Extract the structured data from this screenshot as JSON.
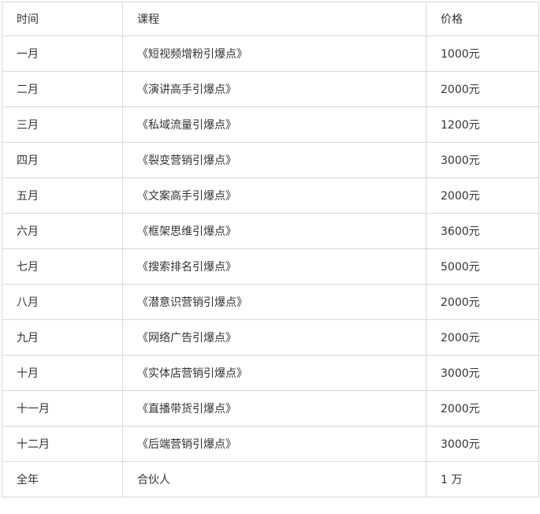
{
  "colors": {
    "background": "#ffffff",
    "border": "#d9d9d9",
    "text": "#333333"
  },
  "chart_data": {
    "type": "table",
    "columns": [
      "时间",
      "课程",
      "价格"
    ],
    "rows": [
      [
        "一月",
        "《短视频增粉引爆点》",
        "1000元"
      ],
      [
        "二月",
        "《演讲高手引爆点》",
        "2000元"
      ],
      [
        "三月",
        "《私域流量引爆点》",
        "1200元"
      ],
      [
        "四月",
        "《裂变营销引爆点》",
        "3000元"
      ],
      [
        "五月",
        "《文案高手引爆点》",
        "2000元"
      ],
      [
        "六月",
        "《框架思维引爆点》",
        "3600元"
      ],
      [
        "七月",
        "《搜索排名引爆点》",
        "5000元"
      ],
      [
        "八月",
        "《潜意识营销引爆点》",
        "2000元"
      ],
      [
        "九月",
        "《网络广告引爆点》",
        "2000元"
      ],
      [
        "十月",
        "《实体店营销引爆点》",
        "3000元"
      ],
      [
        "十一月",
        "《直播带货引爆点》",
        "2000元"
      ],
      [
        "十二月",
        "《后端营销引爆点》",
        "3000元"
      ],
      [
        "全年",
        "合伙人",
        "1 万"
      ]
    ]
  }
}
